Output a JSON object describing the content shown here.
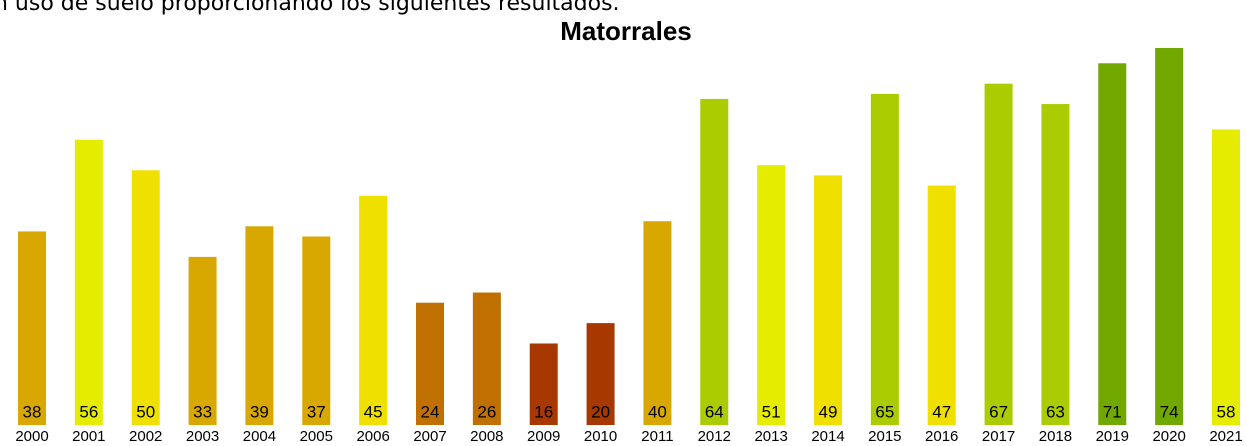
{
  "intro": "n uso de suelo proporcionando los siguientes resultados.",
  "chart_data": {
    "type": "bar",
    "title": "Matorrales",
    "categories": [
      "2000",
      "2001",
      "2002",
      "2003",
      "2004",
      "2005",
      "2006",
      "2007",
      "2008",
      "2009",
      "2010",
      "2011",
      "2012",
      "2013",
      "2014",
      "2015",
      "2016",
      "2017",
      "2018",
      "2019",
      "2020",
      "2021"
    ],
    "values": [
      38,
      56,
      50,
      33,
      39,
      37,
      45,
      24,
      26,
      16,
      20,
      40,
      64,
      51,
      49,
      65,
      47,
      67,
      63,
      71,
      74,
      58
    ],
    "colors": [
      "#d9a800",
      "#e6ec00",
      "#f0e000",
      "#d9a800",
      "#d9a800",
      "#d9a800",
      "#f0e000",
      "#c07000",
      "#c07000",
      "#a63800",
      "#a63800",
      "#d9a800",
      "#aacc00",
      "#e6ec00",
      "#f0e000",
      "#aacc00",
      "#f0e000",
      "#aacc00",
      "#aacc00",
      "#70a800",
      "#70a800",
      "#e6ec00"
    ]
  }
}
